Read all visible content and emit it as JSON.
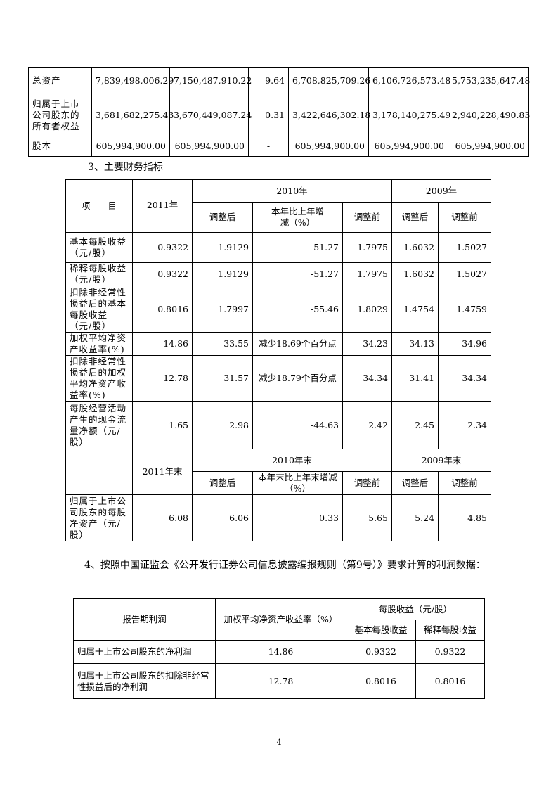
{
  "balance_table": {
    "rows": [
      {
        "label": "总资产",
        "values": [
          "7,839,498,006.29",
          "7,150,487,910.22",
          "9.64",
          "6,708,825,709.26",
          "6,106,726,573.48",
          "5,753,235,647.48"
        ]
      },
      {
        "label": "归属于上市公司股东的所有者权益",
        "values": [
          "3,681,682,275.43",
          "3,670,449,087.24",
          "0.31",
          "3,422,646,302.18",
          "3,178,140,275.49",
          "2,940,228,490.83"
        ]
      },
      {
        "label": "股本",
        "values": [
          "605,994,900.00",
          "605,994,900.00",
          "-",
          "605,994,900.00",
          "605,994,900.00",
          "605,994,900.00"
        ]
      }
    ]
  },
  "section3_heading": "3、主要财务指标",
  "indicators_table": {
    "header": {
      "item": "项　　目",
      "y2011": "2011年",
      "y2010": "2010年",
      "y2009": "2009年",
      "adjusted": "调整后",
      "change": "本年比上年增减（%）",
      "before": "调整前"
    },
    "rows": [
      {
        "label": "基本每股收益（元/股）",
        "values": [
          "0.9322",
          "1.9129",
          "-51.27",
          "1.7975",
          "1.6032",
          "1.5027"
        ]
      },
      {
        "label": "稀释每股收益（元/股）",
        "values": [
          "0.9322",
          "1.9129",
          "-51.27",
          "1.7975",
          "1.6032",
          "1.5027"
        ]
      },
      {
        "label": "扣除非经常性损益后的基本每股收益（元/股）",
        "values": [
          "0.8016",
          "1.7997",
          "-55.46",
          "1.8029",
          "1.4754",
          "1.4759"
        ]
      },
      {
        "label": "加权平均净资产收益率(%)",
        "values": [
          "14.86",
          "33.55",
          "减少18.69个百分点",
          "34.23",
          "34.13",
          "34.96"
        ]
      },
      {
        "label": "扣除非经常性损益后的加权平均净资产收益率(%)",
        "values": [
          "12.78",
          "31.57",
          "减少18.79个百分点",
          "34.34",
          "31.41",
          "34.34"
        ]
      },
      {
        "label": "每股经营活动产生的现金流量净额（元/股）",
        "values": [
          "1.65",
          "2.98",
          "-44.63",
          "2.42",
          "2.45",
          "2.34"
        ]
      }
    ],
    "header2": {
      "y2011": "2011年末",
      "y2010": "2010年末",
      "y2009": "2009年末",
      "adjusted": "调整后",
      "change": "本年末比上年末增减（%）",
      "before": "调整前"
    },
    "rows2": [
      {
        "label": "归属于上市公司股东的每股净资产（元/股）",
        "values": [
          "6.08",
          "6.06",
          "0.33",
          "5.65",
          "5.24",
          "4.85"
        ]
      }
    ]
  },
  "section4_text": "4、按照中国证监会《公开发行证券公司信息披露编报规则（第9号）》要求计算的利润数据：",
  "profit_table": {
    "header": {
      "period": "报告期利润",
      "roe": "加权平均净资产收益率（%）",
      "eps": "每股收益（元/股）",
      "basic": "基本每股收益",
      "diluted": "稀释每股收益"
    },
    "rows": [
      {
        "label": "归属于上市公司股东的净利润",
        "values": [
          "14.86",
          "0.9322",
          "0.9322"
        ]
      },
      {
        "label": "归属于上市公司股东的扣除非经常性损益后的净利润",
        "values": [
          "12.78",
          "0.8016",
          "0.8016"
        ]
      }
    ]
  },
  "page_number": "4"
}
